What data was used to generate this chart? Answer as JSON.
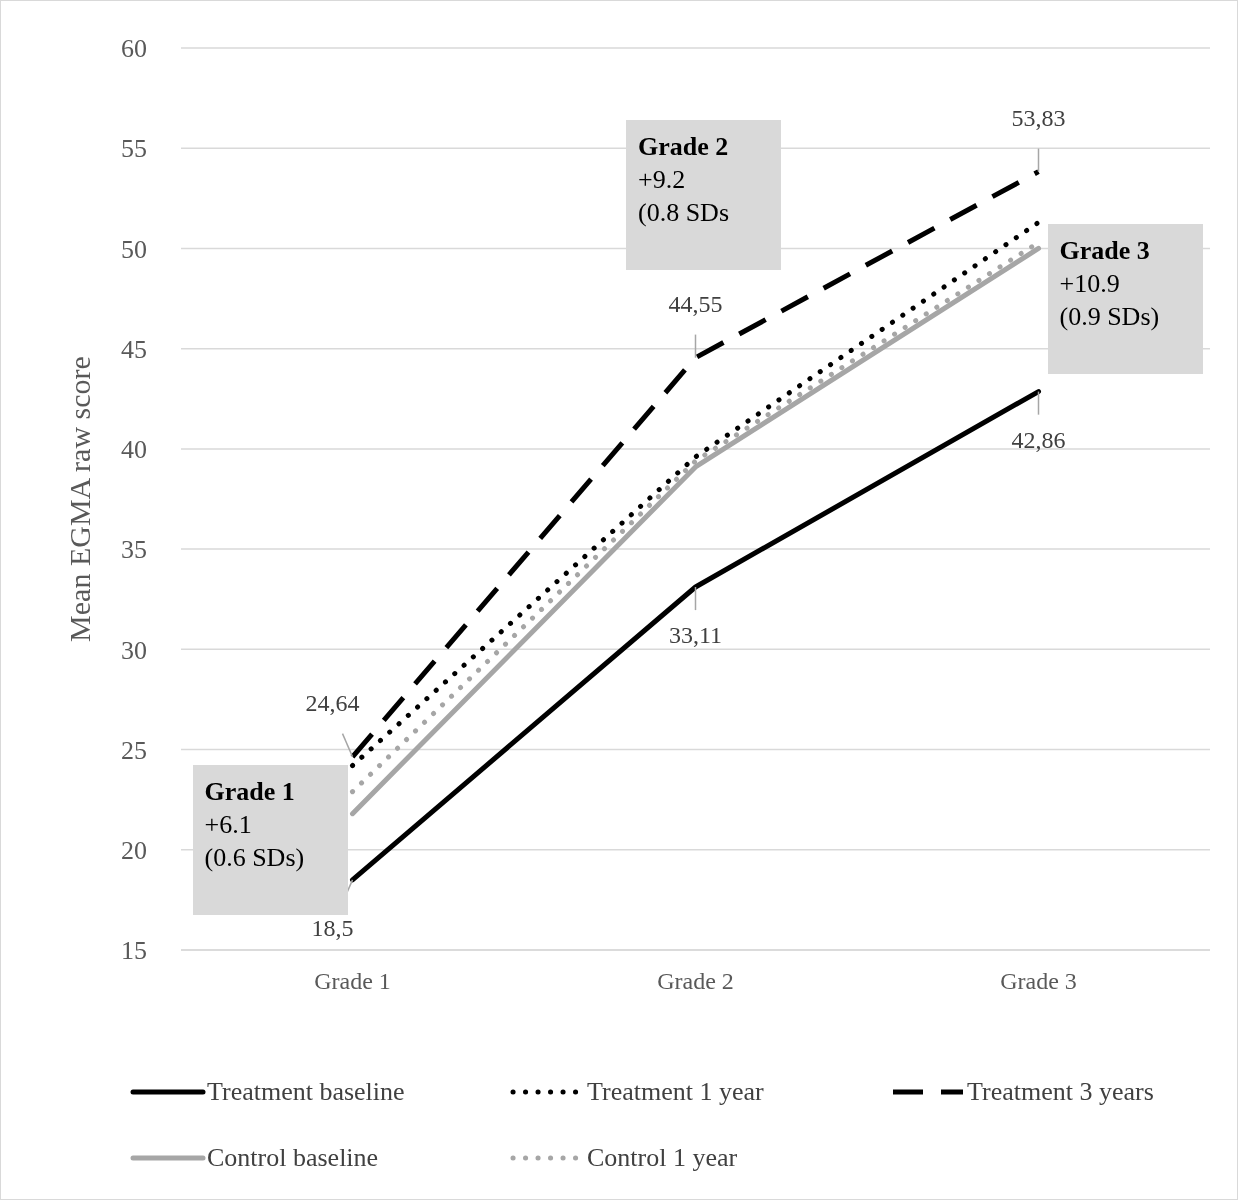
{
  "chart_data": {
    "type": "line",
    "ylabel": "Mean EGMA raw score",
    "categories": [
      "Grade 1",
      "Grade 2",
      "Grade 3"
    ],
    "ylim": [
      15,
      60
    ],
    "yticks": [
      15,
      20,
      25,
      30,
      35,
      40,
      45,
      50,
      55,
      60
    ],
    "grid": "y",
    "legend": "bottom",
    "marker": "none",
    "series": [
      {
        "name": "Treatment baseline",
        "color": "#000000",
        "line_style": "solid",
        "values": [
          18.5,
          33.11,
          42.86
        ],
        "value_labels": [
          "18,5",
          "33,11",
          "42,86"
        ]
      },
      {
        "name": "Treatment 1 year",
        "color": "#000000",
        "line_style": "dotted",
        "values": [
          24.2,
          39.6,
          51.3
        ]
      },
      {
        "name": "Treatment 3 years",
        "color": "#000000",
        "line_style": "dashed",
        "values": [
          24.64,
          44.55,
          53.83
        ],
        "value_labels": [
          "24,64",
          "44,55",
          "53,83"
        ]
      },
      {
        "name": "Control baseline",
        "color": "#a6a6a6",
        "line_style": "solid",
        "values": [
          21.8,
          39.1,
          50.0
        ]
      },
      {
        "name": "Control 1 year",
        "color": "#a6a6a6",
        "line_style": "dotted",
        "values": [
          22.9,
          39.4,
          50.3
        ]
      }
    ],
    "annotations": [
      "Grade 1\n+6.1\n(0.6 SDs)",
      "Grade 2\n+9.2\n(0.8 SDs",
      "Grade 3\n+10.9\n(0.9 SDs)"
    ]
  }
}
